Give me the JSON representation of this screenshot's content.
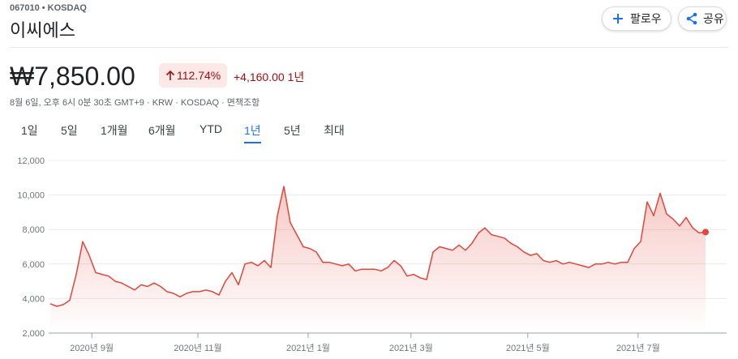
{
  "header": {
    "ticker": "067010 • KOSDAQ",
    "name": "이씨에스",
    "follow": "팔로우",
    "share": "공유",
    "price": "₩7,850.00",
    "change_pct": "112.74%",
    "change_abs": "+4,160.00",
    "change_period": "1년",
    "info": "8월 6일, 오후 6시 0분 30초 GMT+9 · KRW · KOSDAQ · ",
    "disclaimer": "면책조항"
  },
  "tabs": [
    "1일",
    "5일",
    "1개월",
    "6개월",
    "YTD",
    "1년",
    "5년",
    "최대"
  ],
  "selected_tab": 5,
  "chart_data": {
    "type": "line",
    "series": [
      {
        "color": "#e0463a",
        "values": [
          3700,
          3550,
          3650,
          3900,
          5400,
          7300,
          6500,
          5500,
          5400,
          5300,
          5000,
          4900,
          4700,
          4500,
          4800,
          4700,
          4900,
          4700,
          4400,
          4300,
          4100,
          4300,
          4400,
          4400,
          4500,
          4400,
          4200,
          5000,
          5500,
          4800,
          6000,
          6100,
          5900,
          6200,
          5800,
          8800,
          10500,
          8400,
          7700,
          7000,
          6900,
          6700,
          6100,
          6100,
          6000,
          5900,
          6000,
          5600,
          5700,
          5700,
          5700,
          5600,
          5800,
          6200,
          5900,
          5300,
          5400,
          5200,
          5100,
          6700,
          7000,
          6900,
          6800,
          7100,
          6800,
          7200,
          7800,
          8100,
          7700,
          7600,
          7500,
          7200,
          7000,
          6700,
          6500,
          6600,
          6200,
          6100,
          6200,
          6000,
          6100,
          6000,
          5900,
          5800,
          6000,
          6000,
          6100,
          6000,
          6100,
          6100,
          6900,
          7300,
          9600,
          8800,
          10100,
          8900,
          8600,
          8200,
          8700,
          8100,
          7800,
          7850
        ]
      }
    ],
    "xlim": [
      0,
      101
    ],
    "xticks": [
      {
        "value": 6.4,
        "label": "2020년 9월"
      },
      {
        "value": 22.75,
        "label": "2020년 11월"
      },
      {
        "value": 39.75,
        "label": "2021년 1월"
      },
      {
        "value": 55.6,
        "label": "2021년 3월"
      },
      {
        "value": 73.6,
        "label": "2021년 5월"
      },
      {
        "value": 90.6,
        "label": "2021년 7월"
      }
    ],
    "ylim": [
      2000,
      12000
    ],
    "yticks": [
      {
        "value": 2000,
        "label": "2,000"
      },
      {
        "value": 4000,
        "label": "4,000"
      },
      {
        "value": 6000,
        "label": "6,000"
      },
      {
        "value": 8000,
        "label": "8,000"
      },
      {
        "value": 10000,
        "label": "10,000"
      },
      {
        "value": 12000,
        "label": "12,000"
      }
    ],
    "grid": true
  }
}
